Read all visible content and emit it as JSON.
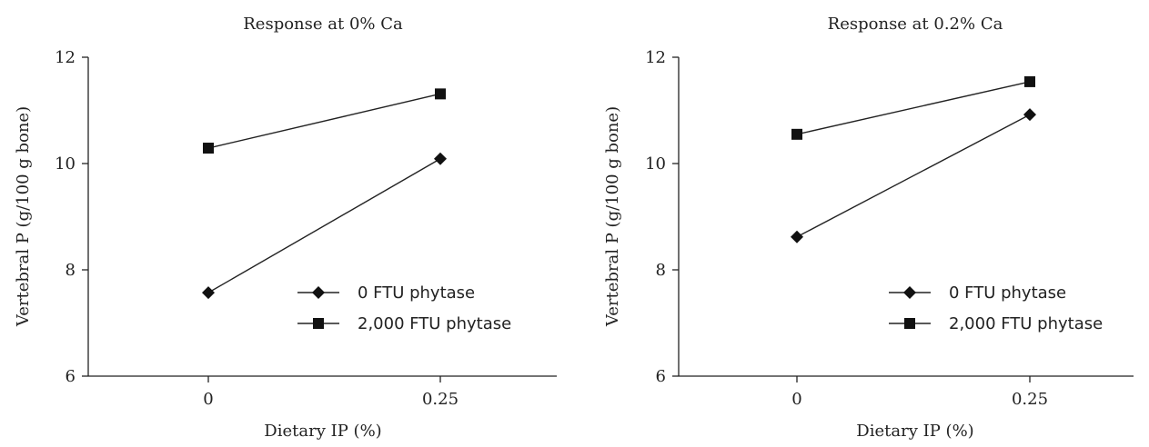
{
  "chart_data": [
    {
      "type": "line",
      "title": "Response at 0% Ca",
      "xlabel": "Dietary IP (%)",
      "ylabel": "Vertebral P (g/100 g bone)",
      "categories": [
        "0",
        "0.25"
      ],
      "ylim": [
        6,
        12
      ],
      "yticks": [
        6,
        8,
        10,
        12
      ],
      "grid": false,
      "legend_position": "lower-right",
      "series": [
        {
          "name": "0 FTU phytase",
          "marker": "diamond",
          "values": [
            7.57,
            10.09
          ]
        },
        {
          "name": "2,000 FTU phytase",
          "marker": "square",
          "values": [
            10.29,
            11.31
          ]
        }
      ],
      "colors": {
        "line": "#222222",
        "marker": "#111111",
        "axis": "#222222"
      }
    },
    {
      "type": "line",
      "title": "Response at 0.2% Ca",
      "xlabel": "Dietary IP (%)",
      "ylabel": "Vertebral P (g/100 g bone)",
      "categories": [
        "0",
        "0.25"
      ],
      "ylim": [
        6,
        12
      ],
      "yticks": [
        6,
        8,
        10,
        12
      ],
      "grid": false,
      "legend_position": "lower-right",
      "series": [
        {
          "name": "0 FTU phytase",
          "marker": "diamond",
          "values": [
            8.62,
            10.92
          ]
        },
        {
          "name": "2,000 FTU phytase",
          "marker": "square",
          "values": [
            10.55,
            11.54
          ]
        }
      ],
      "colors": {
        "line": "#222222",
        "marker": "#111111",
        "axis": "#222222"
      }
    }
  ]
}
